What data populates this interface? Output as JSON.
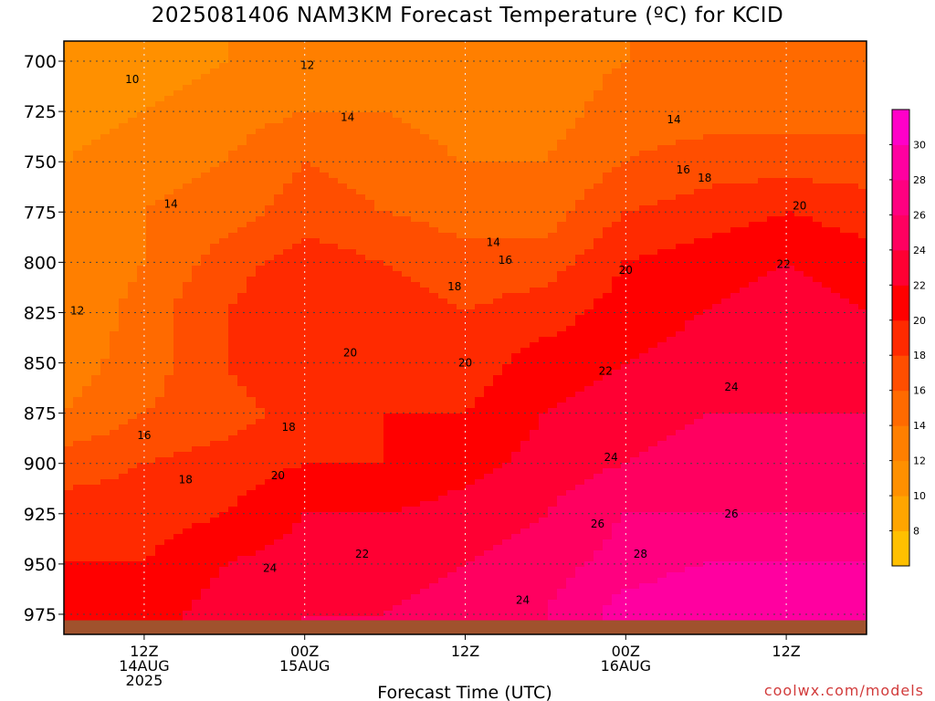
{
  "chart_data": {
    "type": "heatmap",
    "title": "2025081406 NAM3KM Forecast Temperature (ºC) for KCID",
    "xlabel": "Forecast Time (UTC)",
    "ylabel": "",
    "y_axis": {
      "scale": "pressure",
      "inverted": true,
      "ticks": [
        700,
        725,
        750,
        775,
        800,
        825,
        850,
        875,
        900,
        925,
        950,
        975
      ],
      "range": [
        690,
        985
      ]
    },
    "x_axis": {
      "range_hours": [
        0,
        60
      ],
      "ticks": [
        {
          "hour": 6,
          "line1": "12Z",
          "line2": "14AUG",
          "line3": "2025"
        },
        {
          "hour": 18,
          "line1": "00Z",
          "line2": "15AUG",
          "line3": ""
        },
        {
          "hour": 30,
          "line1": "12Z",
          "line2": "",
          "line3": ""
        },
        {
          "hour": 42,
          "line1": "00Z",
          "line2": "16AUG",
          "line3": ""
        },
        {
          "hour": 54,
          "line1": "12Z",
          "line2": "",
          "line3": ""
        }
      ]
    },
    "grid": true,
    "colorbar": {
      "placement": "right",
      "levels": [
        6,
        8,
        10,
        12,
        14,
        16,
        18,
        20,
        22,
        24,
        26,
        28,
        30,
        32
      ],
      "tick_labels": [
        8,
        10,
        12,
        14,
        16,
        18,
        20,
        22,
        24,
        26,
        28,
        30
      ],
      "colors": [
        "#ffc000",
        "#ffa500",
        "#ff9000",
        "#ff7f00",
        "#ff6a00",
        "#ff4e00",
        "#ff2a00",
        "#ff0000",
        "#ff0033",
        "#ff0060",
        "#ff0080",
        "#ff00a0",
        "#ff00c8"
      ]
    },
    "temperature_profile": {
      "hours": [
        0,
        6,
        12,
        18,
        24,
        30,
        36,
        42,
        48,
        54,
        60
      ],
      "pressures": [
        700,
        725,
        750,
        775,
        800,
        825,
        850,
        875,
        900,
        925,
        950,
        975
      ],
      "values": [
        [
          10,
          11,
          12,
          12,
          12,
          13,
          13,
          14,
          14,
          14,
          14
        ],
        [
          11,
          12,
          13,
          14,
          14,
          13,
          13,
          15,
          15,
          15,
          15
        ],
        [
          12,
          13,
          14,
          16,
          15,
          14,
          14,
          16,
          17,
          17,
          17
        ],
        [
          12,
          14,
          15,
          17,
          16,
          15,
          15,
          18,
          19,
          20,
          19
        ],
        [
          12,
          14,
          17,
          19,
          18,
          17,
          17,
          20,
          21,
          22,
          21
        ],
        [
          12,
          15,
          18,
          20,
          19,
          18,
          19,
          21,
          22,
          23,
          22
        ],
        [
          13,
          15,
          18,
          20,
          20,
          19,
          21,
          22,
          23,
          24,
          23
        ],
        [
          14,
          16,
          17,
          19,
          20,
          20,
          22,
          23,
          24,
          24,
          24
        ],
        [
          17,
          18,
          19,
          20,
          20,
          21,
          23,
          24,
          25,
          25,
          25
        ],
        [
          19,
          19,
          20,
          22,
          22,
          23,
          24,
          26,
          26,
          26,
          26
        ],
        [
          20,
          20,
          22,
          23,
          23,
          24,
          25,
          27,
          28,
          28,
          28
        ],
        [
          21,
          21,
          23,
          24,
          24,
          25,
          26,
          29,
          30,
          29,
          30
        ]
      ]
    },
    "contour_labels": [
      {
        "text": "10",
        "hour": 5.1,
        "p": 709
      },
      {
        "text": "12",
        "hour": 18.2,
        "p": 702
      },
      {
        "text": "14",
        "hour": 21.2,
        "p": 728
      },
      {
        "text": "14",
        "hour": 8.0,
        "p": 771
      },
      {
        "text": "12",
        "hour": 1.0,
        "p": 824
      },
      {
        "text": "14",
        "hour": 45.6,
        "p": 729
      },
      {
        "text": "16",
        "hour": 46.3,
        "p": 754
      },
      {
        "text": "18",
        "hour": 47.9,
        "p": 758
      },
      {
        "text": "20",
        "hour": 55.0,
        "p": 772
      },
      {
        "text": "14",
        "hour": 32.1,
        "p": 790
      },
      {
        "text": "16",
        "hour": 33.0,
        "p": 799
      },
      {
        "text": "20",
        "hour": 42.0,
        "p": 804
      },
      {
        "text": "22",
        "hour": 53.8,
        "p": 801
      },
      {
        "text": "18",
        "hour": 29.2,
        "p": 812
      },
      {
        "text": "20",
        "hour": 21.4,
        "p": 845
      },
      {
        "text": "20",
        "hour": 30.0,
        "p": 850
      },
      {
        "text": "22",
        "hour": 40.5,
        "p": 854
      },
      {
        "text": "24",
        "hour": 49.9,
        "p": 862
      },
      {
        "text": "16",
        "hour": 6.0,
        "p": 886
      },
      {
        "text": "18",
        "hour": 16.8,
        "p": 882
      },
      {
        "text": "18",
        "hour": 9.1,
        "p": 908
      },
      {
        "text": "20",
        "hour": 16.0,
        "p": 906
      },
      {
        "text": "24",
        "hour": 40.9,
        "p": 897
      },
      {
        "text": "26",
        "hour": 39.9,
        "p": 930
      },
      {
        "text": "26",
        "hour": 49.9,
        "p": 925
      },
      {
        "text": "22",
        "hour": 22.3,
        "p": 945
      },
      {
        "text": "24",
        "hour": 15.4,
        "p": 952
      },
      {
        "text": "28",
        "hour": 43.1,
        "p": 945
      },
      {
        "text": "24",
        "hour": 34.3,
        "p": 968
      }
    ],
    "surface_pressure": 978,
    "ground_color": "#a0522d"
  },
  "credit": "coolwx.com/models"
}
